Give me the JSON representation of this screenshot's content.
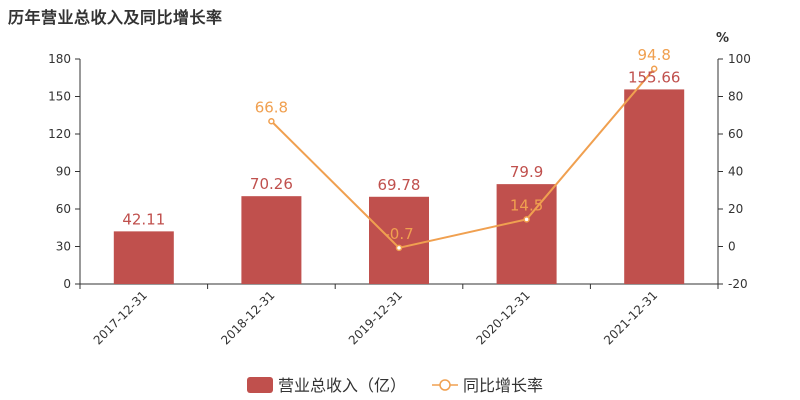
{
  "chart_data": {
    "type": "bar+line",
    "title": "历年营业总收入及同比增长率",
    "categories": [
      "2017-12-31",
      "2018-12-31",
      "2019-12-31",
      "2020-12-31",
      "2021-12-31"
    ],
    "series": [
      {
        "name": "营业总收入（亿）",
        "type": "bar",
        "axis": "left",
        "values": [
          42.11,
          70.26,
          69.78,
          79.9,
          155.66
        ],
        "labels": [
          "42.11",
          "70.26",
          "69.78",
          "79.9",
          "155.66"
        ],
        "color": "#c0504d"
      },
      {
        "name": "同比增长率",
        "type": "line",
        "axis": "right",
        "values": [
          null,
          66.8,
          -0.7,
          14.5,
          94.8
        ],
        "labels": [
          "",
          "66.8",
          "-0.7",
          "14.5",
          "94.8"
        ],
        "color": "#f0a050"
      }
    ],
    "y_left": {
      "min": 0,
      "max": 180,
      "ticks": [
        "0",
        "30",
        "60",
        "90",
        "120",
        "150",
        "180"
      ]
    },
    "y_right": {
      "min": -20,
      "max": 100,
      "ticks": [
        "-20",
        "0",
        "20",
        "40",
        "60",
        "80",
        "100"
      ],
      "unit": "%"
    },
    "grid": false,
    "legend": "bottom"
  }
}
